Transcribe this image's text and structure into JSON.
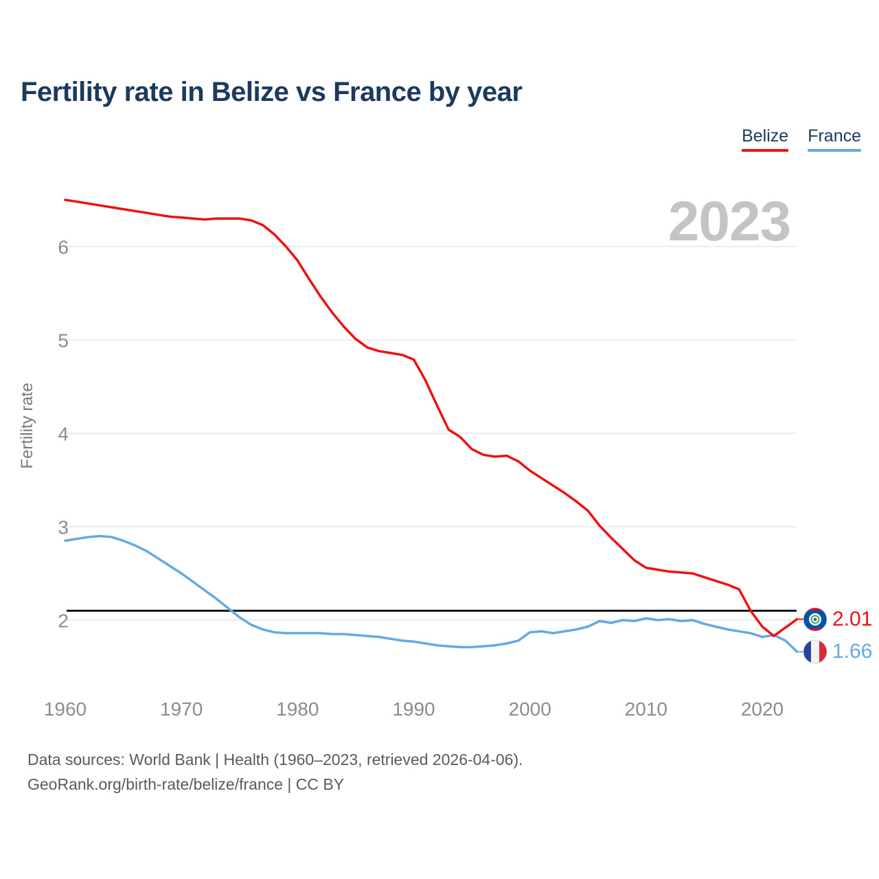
{
  "title": "Fertility rate in Belize vs France by year",
  "watermark": "2023",
  "legend": [
    {
      "label": "Belize",
      "color": "#f01010"
    },
    {
      "label": "France",
      "color": "#64a8e4"
    }
  ],
  "end_labels": [
    {
      "series": "Belize",
      "value": "2.01",
      "color": "#f01010",
      "flag": "belize-flag"
    },
    {
      "series": "France",
      "value": "1.66",
      "color": "#64a8e4",
      "flag": "france-flag"
    }
  ],
  "footer": {
    "line1": "Data sources: World Bank | Health (1960–2023, retrieved 2026-04-06).",
    "line2": "GeoRank.org/birth-rate/belize/france | CC BY"
  },
  "chart_data": {
    "type": "line",
    "title": "Fertility rate in Belize vs France by year",
    "xlabel": "",
    "ylabel": "Fertility rate",
    "x_ticks": [
      1960,
      1970,
      1980,
      1990,
      2000,
      2010,
      2020
    ],
    "y_ticks": [
      2,
      3,
      4,
      5,
      6
    ],
    "xlim": [
      1958.5,
      2029
    ],
    "ylim": [
      1.5,
      6.6
    ],
    "grid": "horizontal",
    "legend_position": "top-right",
    "reference_line": {
      "value": 2.1,
      "color": "#151515"
    },
    "x": [
      1960,
      1961,
      1962,
      1963,
      1964,
      1965,
      1966,
      1967,
      1968,
      1969,
      1970,
      1971,
      1972,
      1973,
      1974,
      1975,
      1976,
      1977,
      1978,
      1979,
      1980,
      1981,
      1982,
      1983,
      1984,
      1985,
      1986,
      1987,
      1988,
      1989,
      1990,
      1991,
      1992,
      1993,
      1994,
      1995,
      1996,
      1997,
      1998,
      1999,
      2000,
      2001,
      2002,
      2003,
      2004,
      2005,
      2006,
      2007,
      2008,
      2009,
      2010,
      2011,
      2012,
      2013,
      2014,
      2015,
      2016,
      2017,
      2018,
      2019,
      2020,
      2021,
      2022,
      2023
    ],
    "series": [
      {
        "name": "Belize",
        "color": "#f01010",
        "values": [
          6.5,
          6.48,
          6.46,
          6.44,
          6.42,
          6.4,
          6.38,
          6.36,
          6.34,
          6.32,
          6.31,
          6.3,
          6.29,
          6.3,
          6.3,
          6.3,
          6.28,
          6.23,
          6.13,
          6.0,
          5.85,
          5.65,
          5.46,
          5.29,
          5.14,
          5.01,
          4.92,
          4.88,
          4.86,
          4.84,
          4.79,
          4.57,
          4.3,
          4.04,
          3.96,
          3.83,
          3.77,
          3.75,
          3.76,
          3.7,
          3.6,
          3.52,
          3.44,
          3.36,
          3.27,
          3.17,
          3.01,
          2.88,
          2.76,
          2.64,
          2.56,
          2.54,
          2.52,
          2.51,
          2.5,
          2.46,
          2.42,
          2.38,
          2.33,
          2.1,
          1.93,
          1.83,
          1.92,
          2.01
        ]
      },
      {
        "name": "France",
        "color": "#64a8e4",
        "values": [
          2.85,
          2.87,
          2.89,
          2.9,
          2.89,
          2.85,
          2.8,
          2.74,
          2.66,
          2.58,
          2.5,
          2.41,
          2.32,
          2.23,
          2.13,
          2.03,
          1.95,
          1.9,
          1.87,
          1.86,
          1.86,
          1.86,
          1.86,
          1.85,
          1.85,
          1.84,
          1.83,
          1.82,
          1.8,
          1.78,
          1.77,
          1.75,
          1.73,
          1.72,
          1.71,
          1.71,
          1.72,
          1.73,
          1.75,
          1.78,
          1.87,
          1.88,
          1.86,
          1.88,
          1.9,
          1.93,
          1.99,
          1.97,
          2.0,
          1.99,
          2.02,
          2.0,
          2.01,
          1.99,
          2.0,
          1.96,
          1.93,
          1.9,
          1.88,
          1.86,
          1.82,
          1.84,
          1.78,
          1.66
        ]
      }
    ]
  }
}
